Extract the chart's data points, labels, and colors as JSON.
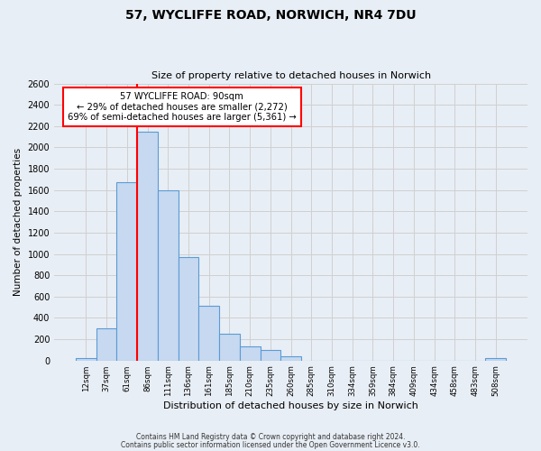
{
  "title": "57, WYCLIFFE ROAD, NORWICH, NR4 7DU",
  "subtitle": "Size of property relative to detached houses in Norwich",
  "xlabel": "Distribution of detached houses by size in Norwich",
  "ylabel": "Number of detached properties",
  "footnote1": "Contains HM Land Registry data © Crown copyright and database right 2024.",
  "footnote2": "Contains public sector information licensed under the Open Government Licence v3.0.",
  "bin_labels": [
    "12sqm",
    "37sqm",
    "61sqm",
    "86sqm",
    "111sqm",
    "136sqm",
    "161sqm",
    "185sqm",
    "210sqm",
    "235sqm",
    "260sqm",
    "285sqm",
    "310sqm",
    "334sqm",
    "359sqm",
    "384sqm",
    "409sqm",
    "434sqm",
    "458sqm",
    "483sqm",
    "508sqm"
  ],
  "bin_values": [
    25,
    300,
    1670,
    2150,
    1600,
    975,
    510,
    255,
    130,
    100,
    40,
    0,
    0,
    0,
    0,
    0,
    0,
    0,
    0,
    0,
    20
  ],
  "bar_color": "#c6d9f0",
  "bar_edge_color": "#5b9bd5",
  "vline_color": "red",
  "vline_x_index": 3,
  "annotation_title": "57 WYCLIFFE ROAD: 90sqm",
  "annotation_line1": "← 29% of detached houses are smaller (2,272)",
  "annotation_line2": "69% of semi-detached houses are larger (5,361) →",
  "annotation_box_color": "white",
  "annotation_box_edge": "red",
  "ylim": [
    0,
    2600
  ],
  "yticks": [
    0,
    200,
    400,
    600,
    800,
    1000,
    1200,
    1400,
    1600,
    1800,
    2000,
    2200,
    2400,
    2600
  ],
  "grid_color": "#d0d0d0",
  "background_color": "#e8eef5"
}
